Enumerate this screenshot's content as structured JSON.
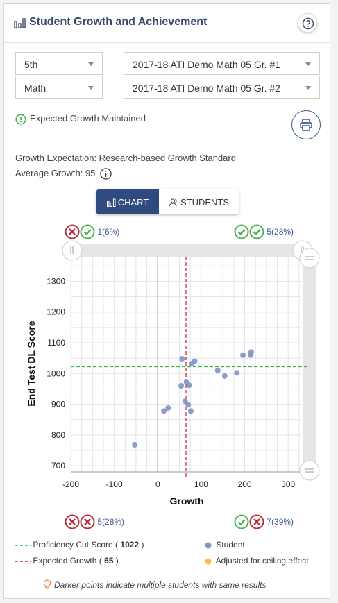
{
  "header": {
    "title": "Student Growth and Achievement",
    "icons": [
      "bar-chart-icon",
      "help-icon"
    ]
  },
  "filters": {
    "grade": "5th",
    "subject": "Math",
    "assessment_1": "2017-18 ATI Demo Math 05 Gr. #1",
    "assessment_2": "2017-18 ATI Demo Math 05 Gr. #2"
  },
  "status_text": "Expected Growth Maintained",
  "growth_expectation": "Growth Expectation: Research-based Growth Standard",
  "average_growth_label": "Average Growth: 95",
  "view_toggle": {
    "chart": "CHART",
    "students": "STUDENTS",
    "active": "chart"
  },
  "quadrants": {
    "top_left": "1(6%)",
    "top_right": "5(28%)",
    "bottom_left": "5(28%)",
    "bottom_right": "7(39%)"
  },
  "colors": {
    "accent": "#2f4a7f",
    "proficiency_line": "#3fae49",
    "expected_line": "#c0223a",
    "student_point": "#8095c9",
    "adjusted_point": "#f5c242",
    "check": "#4caf50",
    "cross": "#b52e3c"
  },
  "legend": {
    "proficiency_label": "Proficiency Cut Score (",
    "proficiency_value": "1022",
    "expected_label": "Expected Growth (",
    "expected_value": "65",
    "close_paren": ")",
    "student": "Student",
    "adjusted": "Adjusted for ceiling effect"
  },
  "footnote": "Darker points indicate multiple students with same results",
  "chart_data": {
    "type": "scatter",
    "xlabel": "Growth",
    "ylabel": "End Test DL Score",
    "xlim": [
      -200,
      330
    ],
    "ylim": [
      680,
      1380
    ],
    "x_ticks": [
      -200,
      -100,
      0,
      100,
      200,
      300
    ],
    "y_ticks": [
      700,
      800,
      900,
      1000,
      1100,
      1200,
      1300
    ],
    "grid": true,
    "proficiency_cut_score": 1022,
    "expected_growth": 65,
    "points": [
      {
        "x": -53,
        "y": 768
      },
      {
        "x": 14,
        "y": 878
      },
      {
        "x": 24,
        "y": 888
      },
      {
        "x": 56,
        "y": 1048
      },
      {
        "x": 54,
        "y": 960
      },
      {
        "x": 63,
        "y": 910
      },
      {
        "x": 66,
        "y": 973
      },
      {
        "x": 70,
        "y": 898
      },
      {
        "x": 72,
        "y": 962
      },
      {
        "x": 76,
        "y": 878
      },
      {
        "x": 78,
        "y": 1032
      },
      {
        "x": 85,
        "y": 1040
      },
      {
        "x": 138,
        "y": 1010
      },
      {
        "x": 154,
        "y": 992
      },
      {
        "x": 182,
        "y": 1002
      },
      {
        "x": 196,
        "y": 1060
      },
      {
        "x": 214,
        "y": 1060
      },
      {
        "x": 215,
        "y": 1070
      }
    ]
  }
}
